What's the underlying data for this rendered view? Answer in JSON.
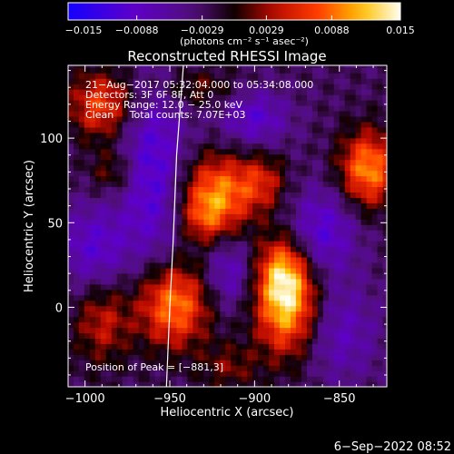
{
  "chart_data": {
    "type": "heatmap",
    "title": "Reconstructed RHESSI Image",
    "xlabel": "Heliocentric X (arcsec)",
    "ylabel": "Heliocentric Y (arcsec)",
    "xlim": [
      -1010,
      -822
    ],
    "ylim": [
      -47,
      143
    ],
    "xticks": [
      -1000,
      -950,
      -900,
      -850
    ],
    "xtick_labels": [
      "−1000",
      "−950",
      "−900",
      "−850"
    ],
    "yticks": [
      0,
      50,
      100
    ],
    "ytick_labels": [
      "0",
      "50",
      "100"
    ],
    "colorbar": {
      "min": -0.015,
      "max": 0.015,
      "ticks": [
        -0.015,
        -0.0088,
        -0.0029,
        0.0029,
        0.0088,
        0.015
      ],
      "tick_labels": [
        "−0.015",
        "−0.0088",
        "−0.0029",
        "0.0029",
        "0.0088",
        "0.015"
      ],
      "unit_label": "(photons cm⁻² s⁻¹ asec⁻²)"
    },
    "info_lines": [
      "21−Aug−2017 05:32:04.000 to 05:34:08.000",
      "Detectors: 3F 6F 8F, Att 0",
      "Energy Range: 12.0 − 25.0 keV",
      "Clean     Total counts: 7.07E+03"
    ],
    "peak_label": "Position of Peak = [−881,3]",
    "peak": [
      -881,
      3
    ],
    "sources": [
      {
        "x": -881,
        "y": 3,
        "sx": 13,
        "sy": 22,
        "amp": 1.0
      },
      {
        "x": -884,
        "y": 22,
        "sx": 10,
        "sy": 14,
        "amp": 0.45
      },
      {
        "x": -948,
        "y": 2,
        "sx": 15,
        "sy": 18,
        "amp": 0.85
      },
      {
        "x": -990,
        "y": -8,
        "sx": 12,
        "sy": 18,
        "amp": 0.45
      },
      {
        "x": -922,
        "y": 68,
        "sx": 16,
        "sy": 16,
        "amp": 0.8
      },
      {
        "x": -930,
        "y": 52,
        "sx": 10,
        "sy": 10,
        "amp": 0.35
      },
      {
        "x": -895,
        "y": 75,
        "sx": 10,
        "sy": 12,
        "amp": 0.4
      },
      {
        "x": -833,
        "y": 82,
        "sx": 12,
        "sy": 16,
        "amp": 0.85
      },
      {
        "x": -990,
        "y": 120,
        "sx": 14,
        "sy": 14,
        "amp": 0.65
      },
      {
        "x": -983,
        "y": 80,
        "sx": 10,
        "sy": 10,
        "amp": 0.35
      },
      {
        "x": -915,
        "y": -35,
        "sx": 12,
        "sy": 10,
        "amp": 0.3
      },
      {
        "x": -935,
        "y": 130,
        "sx": 18,
        "sy": 8,
        "amp": 0.3
      },
      {
        "x": -960,
        "y": 80,
        "sx": 14,
        "sy": 40,
        "amp": -0.55
      },
      {
        "x": -860,
        "y": 45,
        "sx": 14,
        "sy": 18,
        "amp": -0.5
      },
      {
        "x": -850,
        "y": -15,
        "sx": 16,
        "sy": 20,
        "amp": -0.35
      },
      {
        "x": -900,
        "y": 112,
        "sx": 14,
        "sy": 12,
        "amp": -0.45
      },
      {
        "x": -995,
        "y": 35,
        "sx": 14,
        "sy": 18,
        "amp": -0.45
      },
      {
        "x": -915,
        "y": 20,
        "sx": 10,
        "sy": 14,
        "amp": -0.4
      }
    ],
    "limb_curve": [
      [
        -942,
        143
      ],
      [
        -946,
        90
      ],
      [
        -948,
        40
      ],
      [
        -950,
        0
      ],
      [
        -952,
        -47
      ]
    ]
  },
  "footer": {
    "date": "6−Sep−2022 08:52"
  }
}
